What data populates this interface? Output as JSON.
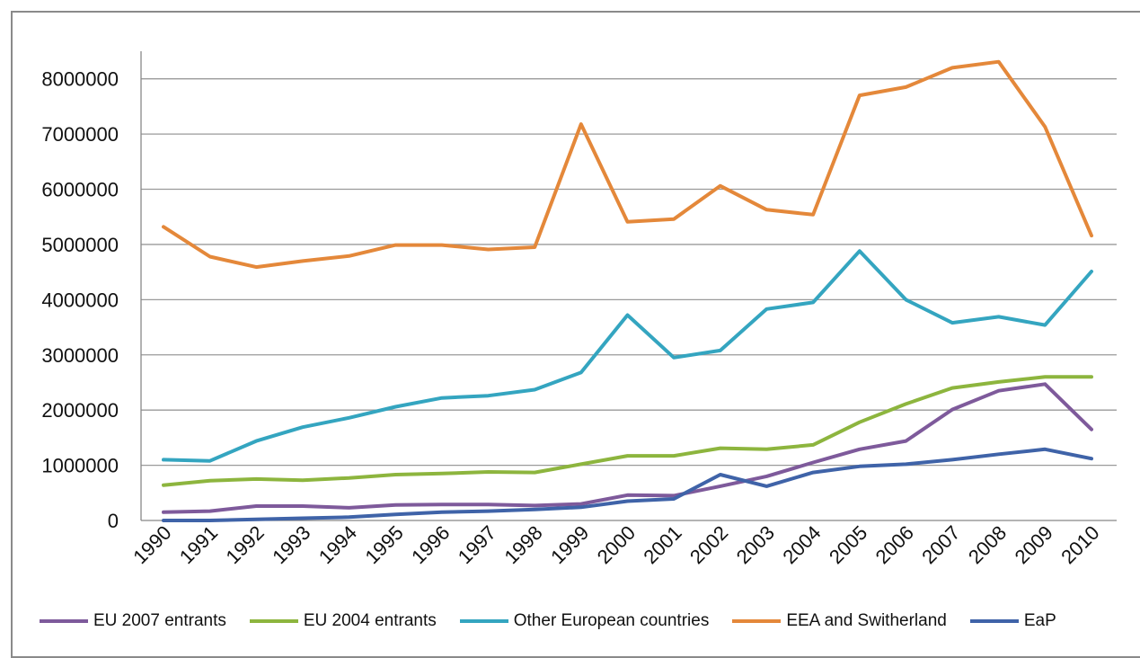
{
  "chart_data": {
    "type": "line",
    "categories": [
      "1990",
      "1991",
      "1992",
      "1993",
      "1994",
      "1995",
      "1996",
      "1997",
      "1998",
      "1999",
      "2000",
      "2001",
      "2002",
      "2003",
      "2004",
      "2005",
      "2006",
      "2007",
      "2008",
      "2009",
      "2010"
    ],
    "ylim": [
      0,
      8500000
    ],
    "yticks": [
      0,
      1000000,
      2000000,
      3000000,
      4000000,
      5000000,
      6000000,
      7000000,
      8000000
    ],
    "ytick_labels": [
      "0",
      "1000000",
      "2000000",
      "3000000",
      "4000000",
      "5000000",
      "6000000",
      "7000000",
      "8000000"
    ],
    "grid": true,
    "legend_position": "bottom",
    "series": [
      {
        "name": "EU 2007 entrants",
        "color": "#7e5a9b",
        "values": [
          150000,
          170000,
          260000,
          260000,
          230000,
          280000,
          290000,
          290000,
          270000,
          300000,
          460000,
          450000,
          620000,
          800000,
          1050000,
          1290000,
          1440000,
          2010000,
          2350000,
          2470000,
          1650000
        ]
      },
      {
        "name": "EU 2004 entrants",
        "color": "#8db53e",
        "values": [
          640000,
          720000,
          750000,
          730000,
          770000,
          830000,
          850000,
          880000,
          870000,
          1020000,
          1170000,
          1170000,
          1310000,
          1290000,
          1370000,
          1780000,
          2110000,
          2400000,
          2510000,
          2600000,
          2600000
        ]
      },
      {
        "name": "Other European countries",
        "color": "#34a5c0",
        "values": [
          1100000,
          1080000,
          1440000,
          1690000,
          1860000,
          2060000,
          2220000,
          2260000,
          2370000,
          2680000,
          3720000,
          2950000,
          3080000,
          3830000,
          3950000,
          4880000,
          4000000,
          3580000,
          3690000,
          3540000,
          4510000
        ]
      },
      {
        "name": "EEA and Switherland",
        "color": "#e4883a",
        "values": [
          5320000,
          4780000,
          4590000,
          4700000,
          4790000,
          4990000,
          4990000,
          4910000,
          4950000,
          7180000,
          5410000,
          5460000,
          6060000,
          5630000,
          5540000,
          7700000,
          7850000,
          8200000,
          8310000,
          7130000,
          5160000
        ]
      },
      {
        "name": "EaP",
        "color": "#3f63a8",
        "values": [
          0,
          0,
          20000,
          40000,
          60000,
          110000,
          150000,
          170000,
          200000,
          240000,
          350000,
          390000,
          830000,
          620000,
          870000,
          980000,
          1020000,
          1100000,
          1200000,
          1290000,
          1120000
        ]
      }
    ]
  }
}
